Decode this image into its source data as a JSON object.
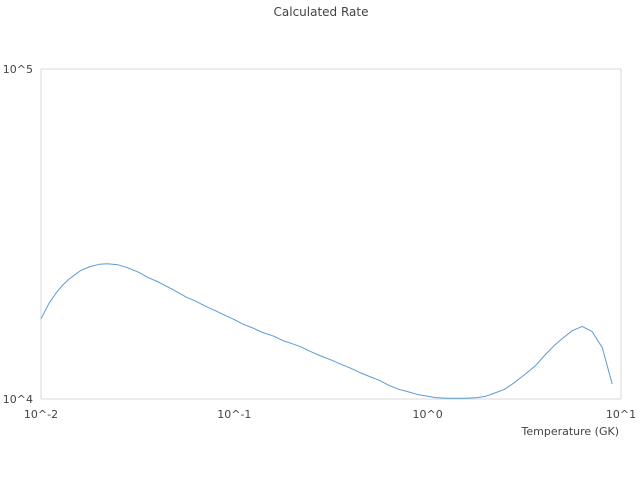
{
  "chart_data": {
    "type": "line",
    "title": "Calculated Rate",
    "xlabel": "Temperature (GK)",
    "ylabel": "",
    "x_scale": "log",
    "y_scale": "log",
    "xlim": [
      0.01,
      10
    ],
    "ylim": [
      10000,
      100000
    ],
    "x_ticks": [
      {
        "value": 0.01,
        "label": "10^-2"
      },
      {
        "value": 0.1,
        "label": "10^-1"
      },
      {
        "value": 1,
        "label": "10^0"
      },
      {
        "value": 10,
        "label": "10^1"
      }
    ],
    "y_ticks": [
      {
        "value": 10000,
        "label": "10^4"
      },
      {
        "value": 100000,
        "label": "10^5"
      }
    ],
    "grid": false,
    "legend": "none",
    "colors": {
      "line": "#5b9bd5",
      "axis": "#d9d9d9",
      "text": "#444444"
    },
    "series": [
      {
        "x": [
          0.01,
          0.011,
          0.012,
          0.013,
          0.014,
          0.015,
          0.016,
          0.018,
          0.02,
          0.022,
          0.025,
          0.028,
          0.032,
          0.036,
          0.04,
          0.045,
          0.05,
          0.056,
          0.063,
          0.071,
          0.08,
          0.09,
          0.1,
          0.11,
          0.125,
          0.14,
          0.16,
          0.18,
          0.2,
          0.22,
          0.25,
          0.28,
          0.32,
          0.36,
          0.4,
          0.45,
          0.5,
          0.56,
          0.63,
          0.71,
          0.8,
          0.9,
          1.0,
          1.1,
          1.25,
          1.4,
          1.6,
          1.8,
          2.0,
          2.2,
          2.5,
          2.8,
          3.2,
          3.6,
          4.0,
          4.5,
          5.0,
          5.6,
          6.3,
          7.1,
          8.0,
          9.0
        ],
        "y": [
          17500,
          19500,
          21000,
          22200,
          23100,
          23800,
          24500,
          25200,
          25600,
          25700,
          25500,
          25000,
          24200,
          23300,
          22700,
          21900,
          21200,
          20400,
          19800,
          19100,
          18500,
          17900,
          17400,
          16900,
          16400,
          15900,
          15500,
          15000,
          14700,
          14400,
          13900,
          13500,
          13100,
          12700,
          12400,
          12000,
          11700,
          11400,
          11000,
          10700,
          10500,
          10300,
          10200,
          10100,
          10050,
          10050,
          10050,
          10100,
          10200,
          10400,
          10700,
          11200,
          11900,
          12600,
          13500,
          14500,
          15300,
          16100,
          16600,
          16000,
          14300,
          11100
        ]
      }
    ]
  }
}
